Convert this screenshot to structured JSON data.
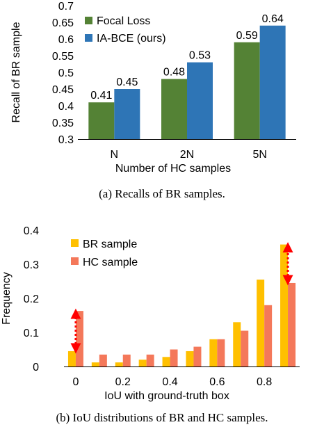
{
  "chart_data": [
    {
      "type": "bar",
      "caption": "(a) Recalls of BR samples.",
      "categories": [
        "N",
        "2N",
        "5N"
      ],
      "xlabel": "Number of HC samples",
      "ylabel": "Recall of BR sample",
      "ylim": [
        0.3,
        0.7
      ],
      "yticks": [
        0.3,
        0.35,
        0.4,
        0.45,
        0.5,
        0.55,
        0.6,
        0.65,
        0.7
      ],
      "ytick_labels": [
        "0.3",
        "0.35",
        "0.4",
        "0.45",
        "0.5",
        "0.55",
        "0.6",
        "0.65",
        "0.7"
      ],
      "series": [
        {
          "name": "Focal Loss",
          "color": "#548235",
          "values": [
            0.41,
            0.48,
            0.59
          ],
          "labels": [
            "0.41",
            "0.48",
            "0.59"
          ]
        },
        {
          "name": "IA-BCE (ours)",
          "color": "#2e75b6",
          "values": [
            0.45,
            0.53,
            0.64
          ],
          "labels": [
            "0.45",
            "0.53",
            "0.64"
          ]
        }
      ],
      "legend": "top-left",
      "grid": false
    },
    {
      "type": "bar",
      "caption": "(b) IoU distributions of BR and HC samples.",
      "xlabel": "IoU with ground-truth box",
      "ylabel": "Frequency",
      "ylim": [
        0,
        0.4
      ],
      "yticks": [
        0,
        0.1,
        0.2,
        0.3,
        0.4
      ],
      "ytick_labels": [
        "0",
        "0.1",
        "0.2",
        "0.3",
        "0.4"
      ],
      "xlim": [
        -0.05,
        0.95
      ],
      "xticks": [
        0,
        0.2,
        0.4,
        0.6,
        0.8
      ],
      "xtick_labels": [
        "0",
        "0.2",
        "0.4",
        "0.6",
        "0.8"
      ],
      "x": [
        0,
        0.1,
        0.2,
        0.3,
        0.4,
        0.5,
        0.6,
        0.7,
        0.8,
        0.9
      ],
      "series": [
        {
          "name": "BR sample",
          "color": "#ffc000",
          "values": [
            0.045,
            0.012,
            0.012,
            0.02,
            0.028,
            0.045,
            0.08,
            0.13,
            0.255,
            0.358
          ]
        },
        {
          "name": "HC sample",
          "color": "#f4785a",
          "values": [
            0.163,
            0.035,
            0.035,
            0.035,
            0.05,
            0.058,
            0.08,
            0.105,
            0.18,
            0.245
          ]
        }
      ],
      "annotations": [
        {
          "type": "double-arrow",
          "x": 0,
          "from": 0.045,
          "to": 0.163,
          "color": "#ff0000"
        },
        {
          "type": "double-arrow",
          "x": 0.9,
          "from": 0.245,
          "to": 0.358,
          "color": "#ff0000"
        }
      ],
      "legend": "top-left",
      "grid": false
    }
  ]
}
